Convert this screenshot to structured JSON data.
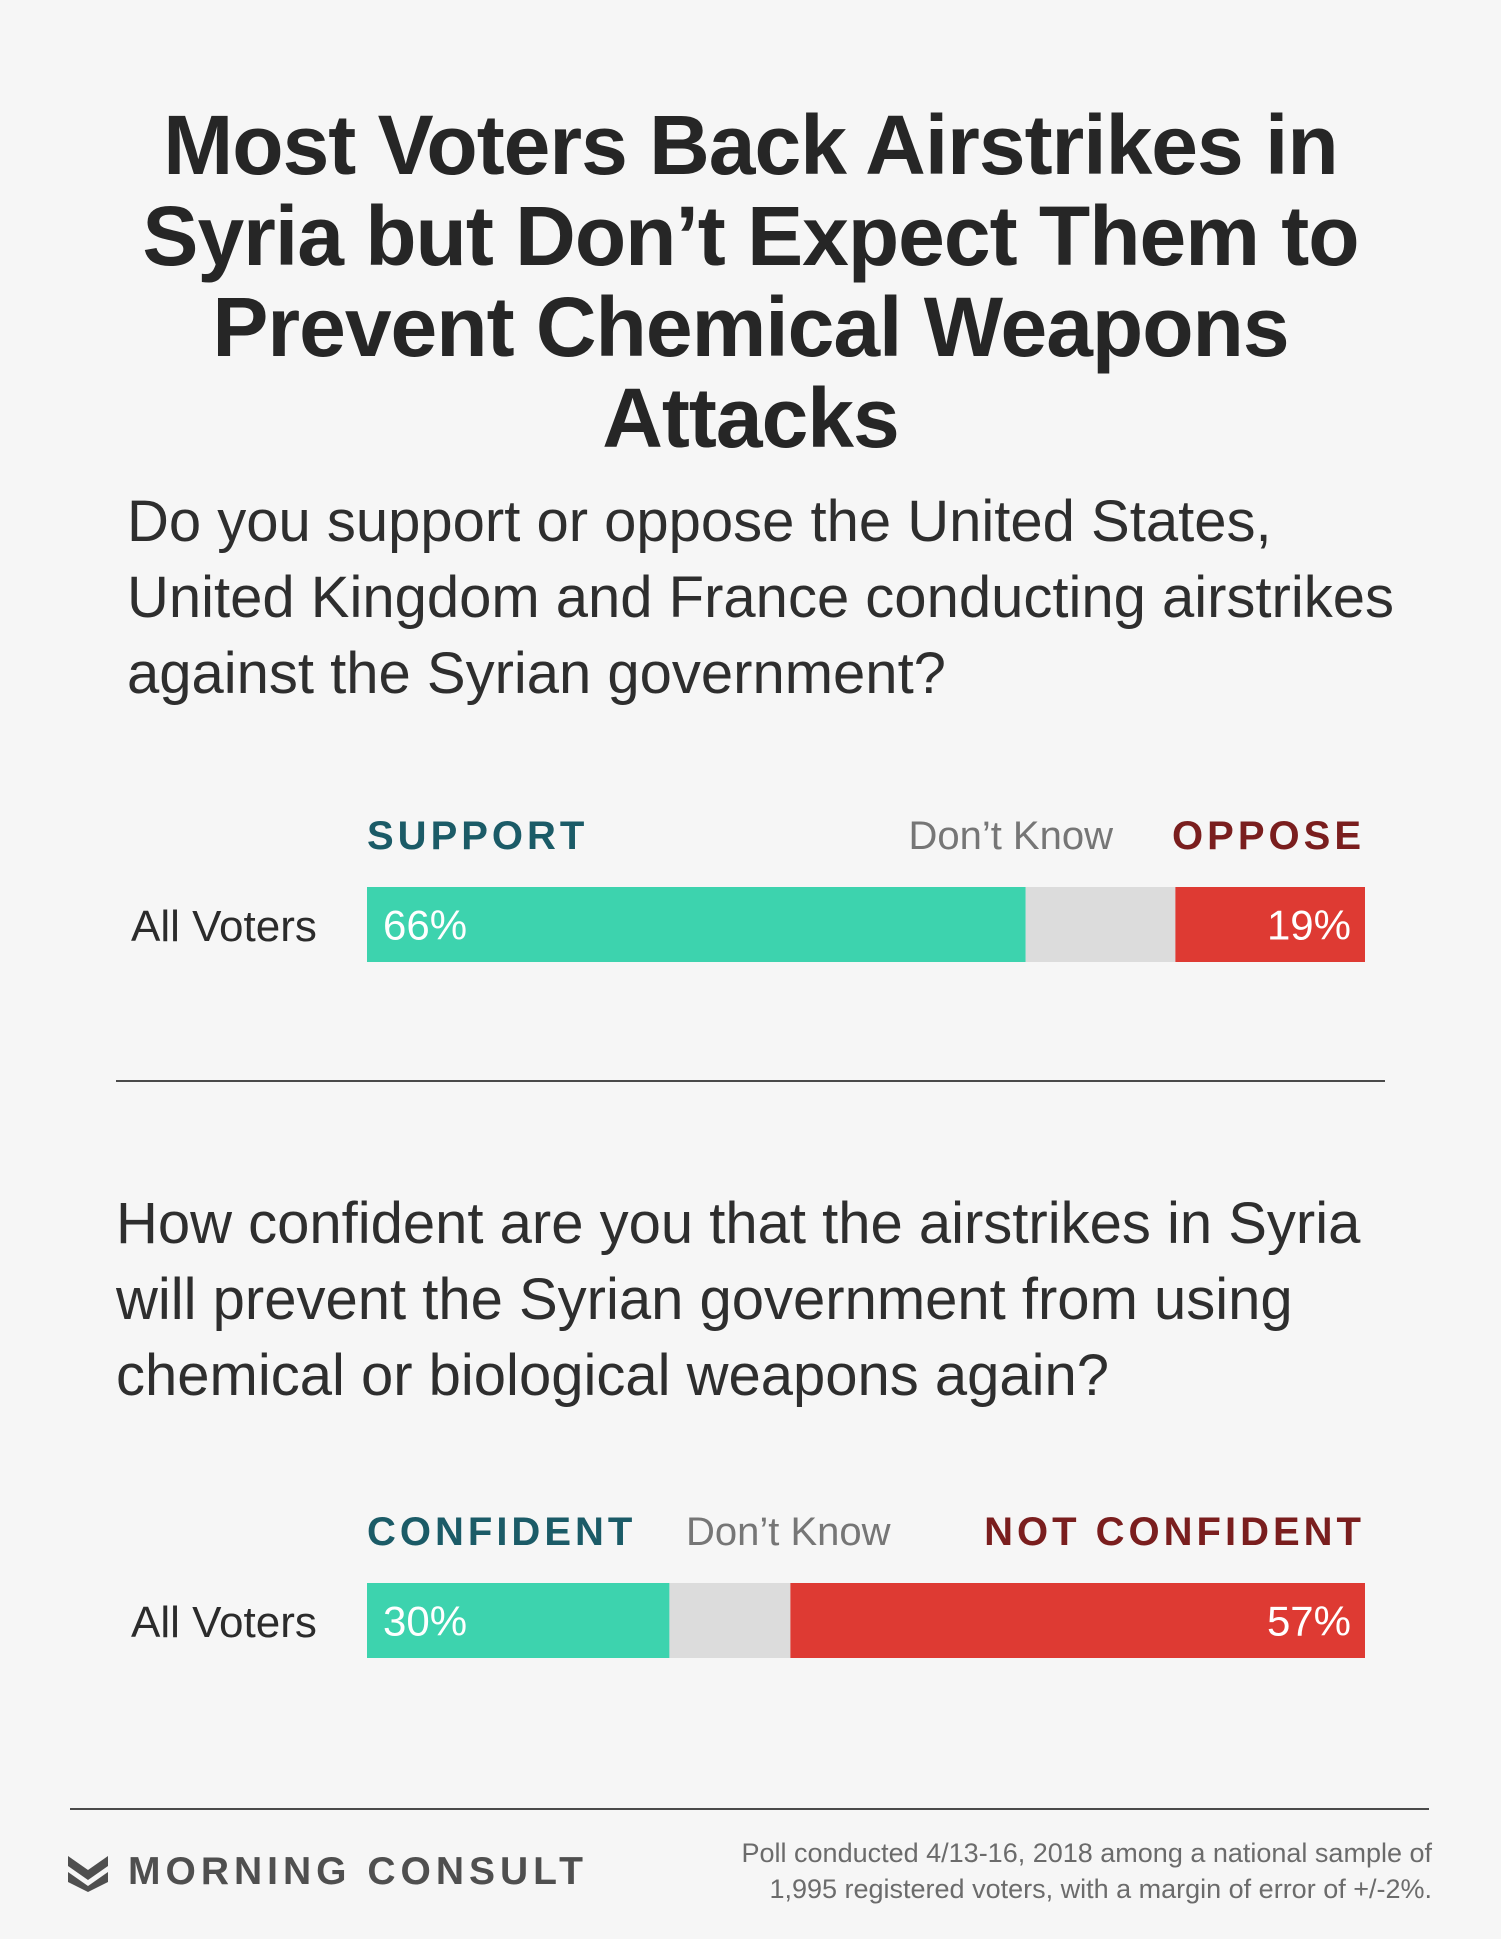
{
  "title": "Most Voters Back Airstrikes in Syria but Don’t Expect Them to Prevent Chemical Weapons Attacks",
  "colors": {
    "positive": "#3dd3ae",
    "dont_know": "#dcdcdc",
    "negative": "#de3a33",
    "positive_label": "#1b5b67",
    "negative_label": "#7a1e1e"
  },
  "chart_data": [
    {
      "type": "bar",
      "stacked": true,
      "orientation": "horizontal",
      "question": "Do you support or oppose the United States, United Kingdom and France conducting airstrikes against the Syrian government?",
      "categories": [
        "All Voters"
      ],
      "series": [
        {
          "name": "SUPPORT",
          "values": [
            66
          ],
          "label": "66%"
        },
        {
          "name": "Don’t Know",
          "values": [
            15
          ],
          "label": ""
        },
        {
          "name": "OPPOSE",
          "values": [
            19
          ],
          "label": "19%"
        }
      ],
      "xlim": [
        0,
        100
      ]
    },
    {
      "type": "bar",
      "stacked": true,
      "orientation": "horizontal",
      "question": "How confident are you that the airstrikes in Syria will prevent the Syrian government from using chemical or biological weapons again?",
      "categories": [
        "All Voters"
      ],
      "series": [
        {
          "name": "CONFIDENT",
          "values": [
            30
          ],
          "label": "30%"
        },
        {
          "name": "Don’t Know",
          "values": [
            12
          ],
          "label": ""
        },
        {
          "name": "NOT CONFIDENT",
          "values": [
            57
          ],
          "label": "57%"
        }
      ],
      "xlim": [
        0,
        99
      ]
    }
  ],
  "footer": {
    "brand": "MORNING CONSULT",
    "logo_icon": "morning-consult-chevron-icon",
    "note": "Poll conducted 4/13-16, 2018 among a national sample of 1,995 registered voters, with a margin of error of +/-2%."
  }
}
